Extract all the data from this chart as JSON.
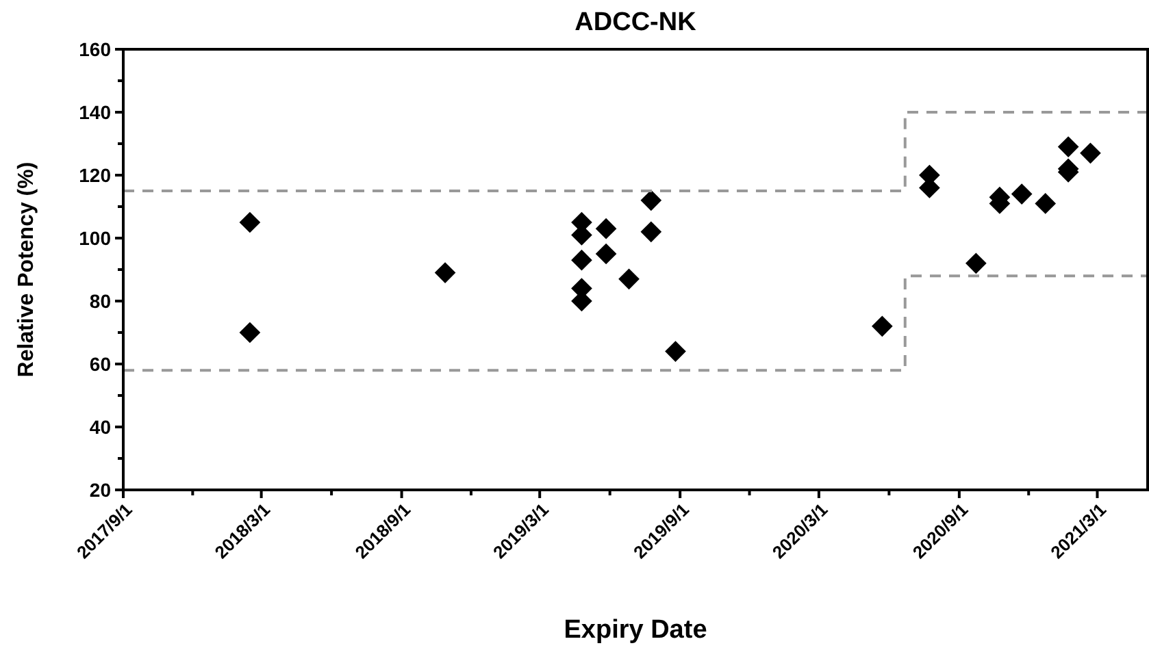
{
  "chart_data": {
    "type": "scatter",
    "title": "ADCC-NK",
    "xlabel": "Expiry Date",
    "ylabel": "Relative Potency (%)",
    "xlim": [
      "2017-09-01",
      "2021-05-06"
    ],
    "xticks": [
      {
        "value": "2017-09-01",
        "label": "2017/9/1"
      },
      {
        "value": "2017-12-01",
        "label": null
      },
      {
        "value": "2018-03-01",
        "label": "2018/3/1"
      },
      {
        "value": "2018-06-01",
        "label": null
      },
      {
        "value": "2018-09-01",
        "label": "2018/9/1"
      },
      {
        "value": "2018-12-01",
        "label": null
      },
      {
        "value": "2019-03-01",
        "label": "2019/3/1"
      },
      {
        "value": "2019-06-01",
        "label": null
      },
      {
        "value": "2019-09-01",
        "label": "2019/9/1"
      },
      {
        "value": "2019-12-01",
        "label": null
      },
      {
        "value": "2020-03-01",
        "label": "2020/3/1"
      },
      {
        "value": "2020-06-01",
        "label": null
      },
      {
        "value": "2020-09-01",
        "label": "2020/9/1"
      },
      {
        "value": "2020-12-01",
        "label": null
      },
      {
        "value": "2021-03-01",
        "label": "2021/3/1"
      }
    ],
    "ylim": [
      20,
      160
    ],
    "yticks": [
      20,
      {
        "value": 30,
        "label": null
      },
      40,
      {
        "value": 50,
        "label": null
      },
      60,
      {
        "value": 70,
        "label": null
      },
      80,
      {
        "value": 90,
        "label": null
      },
      100,
      {
        "value": 110,
        "label": null
      },
      120,
      {
        "value": 130,
        "label": null
      },
      140,
      {
        "value": 150,
        "label": null
      },
      160
    ],
    "grid": false,
    "series": [
      {
        "marker": "diamond",
        "color": "#000000",
        "x": [
          "2018-02-14",
          "2018-02-14",
          "2018-10-28",
          "2019-04-25",
          "2019-04-25",
          "2019-04-25",
          "2019-04-25",
          "2019-04-25",
          "2019-05-27",
          "2019-05-27",
          "2019-06-26",
          "2019-07-25",
          "2019-07-25",
          "2019-08-26",
          "2020-05-23",
          "2020-07-24",
          "2020-07-24",
          "2020-09-23",
          "2020-10-24",
          "2020-10-24",
          "2020-11-22",
          "2020-12-23",
          "2021-01-22",
          "2021-01-22",
          "2021-01-22",
          "2021-02-20"
        ],
        "values": [
          105,
          70,
          89,
          105,
          101,
          93,
          84,
          80,
          103,
          95,
          87,
          112,
          102,
          64,
          72,
          120,
          116,
          92,
          113,
          111,
          114,
          111,
          129,
          122,
          121,
          127
        ]
      },
      {
        "type": "step",
        "marker": "none",
        "line_style": "dashed",
        "color": "#999999",
        "x": [
          "2017-09-01",
          "2020-06-22",
          "2021-05-06"
        ],
        "values": [
          115,
          140,
          140
        ]
      },
      {
        "type": "step",
        "marker": "none",
        "line_style": "dashed",
        "color": "#999999",
        "x": [
          "2017-09-01",
          "2020-06-22",
          "2021-05-06"
        ],
        "values": [
          58,
          88,
          88
        ]
      }
    ]
  }
}
